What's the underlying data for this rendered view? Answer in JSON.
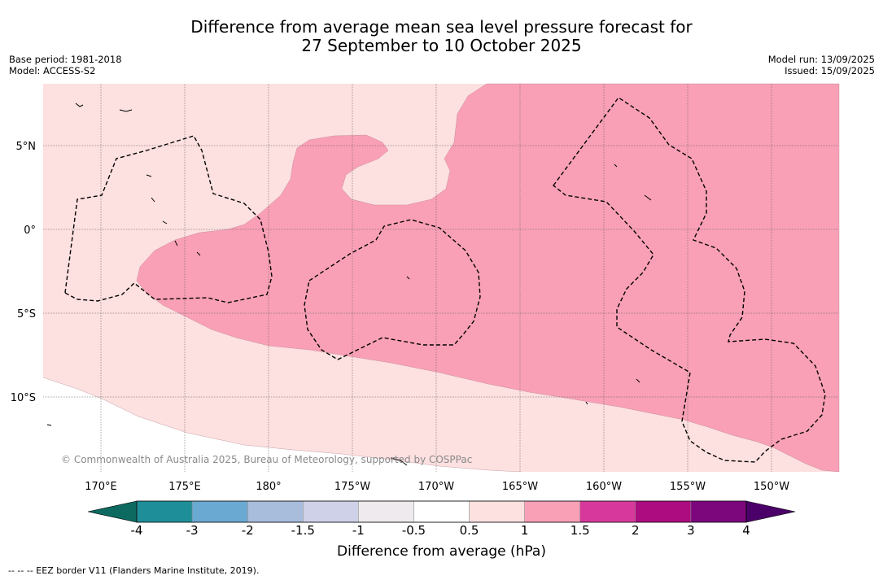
{
  "title_line1": "Difference from average mean sea level pressure forecast for",
  "title_line2": "27 September to 10 October 2025",
  "base_period": "Base period: 1981-2018",
  "model": "Model: ACCESS-S2",
  "model_run": "Model run: 13/09/2025",
  "issued": "Issued: 15/09/2025",
  "copyright": "© Commonwealth of Australia 2025, Bureau of Meteorology, supported by COSPPac",
  "lat_labels": [
    "5°N",
    "0°",
    "5°S",
    "10°S"
  ],
  "lon_labels": [
    "170°E",
    "175°E",
    "180°",
    "175°W",
    "170°W",
    "165°W",
    "160°W",
    "155°W",
    "150°W"
  ],
  "colorbar": {
    "ticks": [
      "-4",
      "-3",
      "-2",
      "-1.5",
      "-1",
      "-0.5",
      "0.5",
      "1",
      "1.5",
      "2",
      "3",
      "4"
    ],
    "colors": [
      "#1e8f99",
      "#6aa9d2",
      "#a8bcdc",
      "#cfd1e8",
      "#eeeaee",
      "#ffffff",
      "#fde0e0",
      "#f9a0b6",
      "#d6399b",
      "#ad0b80",
      "#7c067c"
    ],
    "under_color": "#0d6a60",
    "over_color": "#4b0069",
    "label": "Difference from average (hPa)"
  },
  "legend_note": "--  --  -- EEZ border V11 (Flanders Marine Institute, 2019).",
  "field_colors": {
    "band_0_5_to_1": "#fde0e0",
    "band_1_to_1_5": "#f9a0b6",
    "below_0_5": "#ffffff"
  }
}
